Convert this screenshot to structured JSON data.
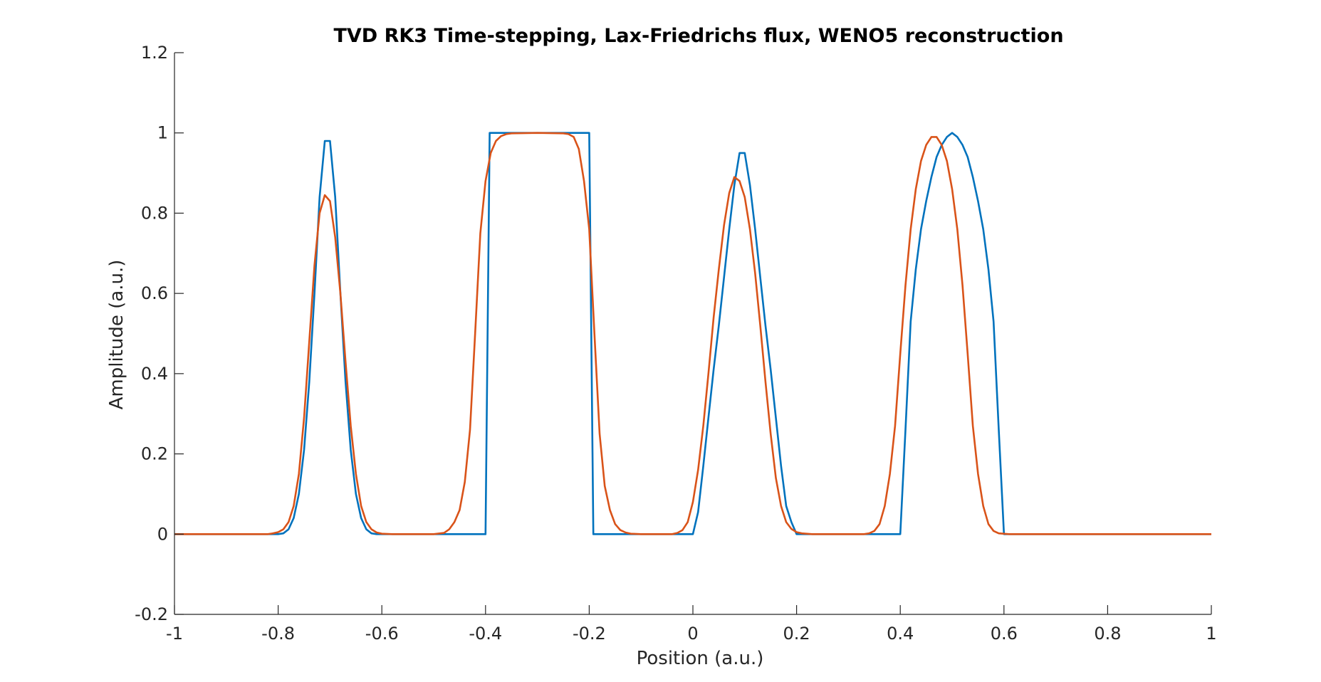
{
  "chart_data": {
    "type": "line",
    "title": "TVD RK3 Time-stepping, Lax-Friedrichs flux, WENO5 reconstruction",
    "xlabel": "Position (a.u.)",
    "ylabel": "Amplitude (a.u.)",
    "xlim": [
      -1,
      1
    ],
    "ylim": [
      -0.2,
      1.2
    ],
    "xticks": [
      -1,
      -0.8,
      -0.6,
      -0.4,
      -0.2,
      0,
      0.2,
      0.4,
      0.6,
      0.8,
      1
    ],
    "xtick_labels": [
      "-1",
      "-0.8",
      "-0.6",
      "-0.4",
      "-0.2",
      "0",
      "0.2",
      "0.4",
      "0.6",
      "0.8",
      "1"
    ],
    "yticks": [
      -0.2,
      0,
      0.2,
      0.4,
      0.6,
      0.8,
      1,
      1.2
    ],
    "ytick_labels": [
      "-0.2",
      "0",
      "0.2",
      "0.4",
      "0.6",
      "0.8",
      "1",
      "1.2"
    ],
    "grid": false,
    "legend": "none",
    "series": [
      {
        "color": "#0072BD",
        "points": [
          [
            -1,
            0
          ],
          [
            -0.8,
            0
          ],
          [
            -0.79,
            0.002
          ],
          [
            -0.78,
            0.012
          ],
          [
            -0.77,
            0.04
          ],
          [
            -0.76,
            0.1
          ],
          [
            -0.75,
            0.21
          ],
          [
            -0.74,
            0.38
          ],
          [
            -0.73,
            0.6
          ],
          [
            -0.72,
            0.84
          ],
          [
            -0.71,
            0.98
          ],
          [
            -0.7,
            0.98
          ],
          [
            -0.69,
            0.84
          ],
          [
            -0.68,
            0.6
          ],
          [
            -0.67,
            0.38
          ],
          [
            -0.66,
            0.21
          ],
          [
            -0.65,
            0.1
          ],
          [
            -0.64,
            0.04
          ],
          [
            -0.63,
            0.012
          ],
          [
            -0.62,
            0.002
          ],
          [
            -0.61,
            0
          ],
          [
            -0.4,
            0
          ],
          [
            -0.392,
            1
          ],
          [
            -0.2,
            1
          ],
          [
            -0.192,
            0
          ],
          [
            0,
            0
          ],
          [
            0.01,
            0.055
          ],
          [
            0.02,
            0.17
          ],
          [
            0.03,
            0.29
          ],
          [
            0.04,
            0.41
          ],
          [
            0.05,
            0.52
          ],
          [
            0.06,
            0.64
          ],
          [
            0.07,
            0.76
          ],
          [
            0.08,
            0.87
          ],
          [
            0.09,
            0.95
          ],
          [
            0.1,
            0.95
          ],
          [
            0.11,
            0.87
          ],
          [
            0.12,
            0.76
          ],
          [
            0.13,
            0.64
          ],
          [
            0.14,
            0.52
          ],
          [
            0.15,
            0.41
          ],
          [
            0.16,
            0.29
          ],
          [
            0.17,
            0.17
          ],
          [
            0.18,
            0.07
          ],
          [
            0.19,
            0.03
          ],
          [
            0.2,
            0
          ],
          [
            0.4,
            0
          ],
          [
            0.41,
            0.26
          ],
          [
            0.42,
            0.53
          ],
          [
            0.43,
            0.66
          ],
          [
            0.44,
            0.76
          ],
          [
            0.45,
            0.83
          ],
          [
            0.46,
            0.89
          ],
          [
            0.47,
            0.94
          ],
          [
            0.48,
            0.97
          ],
          [
            0.49,
            0.99
          ],
          [
            0.5,
            1
          ],
          [
            0.51,
            0.99
          ],
          [
            0.52,
            0.97
          ],
          [
            0.53,
            0.94
          ],
          [
            0.54,
            0.89
          ],
          [
            0.55,
            0.83
          ],
          [
            0.56,
            0.76
          ],
          [
            0.57,
            0.66
          ],
          [
            0.58,
            0.53
          ],
          [
            0.59,
            0.26
          ],
          [
            0.6,
            0
          ],
          [
            1,
            0
          ]
        ]
      },
      {
        "color": "#D95319",
        "points": [
          [
            -1,
            0
          ],
          [
            -0.82,
            0
          ],
          [
            -0.81,
            0.002
          ],
          [
            -0.8,
            0.005
          ],
          [
            -0.79,
            0.012
          ],
          [
            -0.78,
            0.03
          ],
          [
            -0.77,
            0.07
          ],
          [
            -0.76,
            0.15
          ],
          [
            -0.75,
            0.29
          ],
          [
            -0.74,
            0.48
          ],
          [
            -0.73,
            0.67
          ],
          [
            -0.72,
            0.8
          ],
          [
            -0.71,
            0.845
          ],
          [
            -0.7,
            0.83
          ],
          [
            -0.69,
            0.74
          ],
          [
            -0.68,
            0.6
          ],
          [
            -0.67,
            0.43
          ],
          [
            -0.66,
            0.27
          ],
          [
            -0.65,
            0.15
          ],
          [
            -0.64,
            0.07
          ],
          [
            -0.63,
            0.03
          ],
          [
            -0.62,
            0.012
          ],
          [
            -0.61,
            0.004
          ],
          [
            -0.6,
            0.001
          ],
          [
            -0.58,
            0
          ],
          [
            -0.5,
            0
          ],
          [
            -0.48,
            0.003
          ],
          [
            -0.47,
            0.012
          ],
          [
            -0.46,
            0.03
          ],
          [
            -0.45,
            0.06
          ],
          [
            -0.44,
            0.13
          ],
          [
            -0.43,
            0.26
          ],
          [
            -0.42,
            0.5
          ],
          [
            -0.41,
            0.75
          ],
          [
            -0.4,
            0.88
          ],
          [
            -0.39,
            0.95
          ],
          [
            -0.38,
            0.98
          ],
          [
            -0.37,
            0.992
          ],
          [
            -0.36,
            0.997
          ],
          [
            -0.35,
            0.999
          ],
          [
            -0.3,
            1
          ],
          [
            -0.25,
            0.999
          ],
          [
            -0.24,
            0.997
          ],
          [
            -0.23,
            0.99
          ],
          [
            -0.22,
            0.96
          ],
          [
            -0.21,
            0.88
          ],
          [
            -0.2,
            0.76
          ],
          [
            -0.19,
            0.5
          ],
          [
            -0.18,
            0.25
          ],
          [
            -0.17,
            0.12
          ],
          [
            -0.16,
            0.06
          ],
          [
            -0.15,
            0.025
          ],
          [
            -0.14,
            0.01
          ],
          [
            -0.13,
            0.004
          ],
          [
            -0.12,
            0.001
          ],
          [
            -0.1,
            0
          ],
          [
            -0.04,
            0
          ],
          [
            -0.03,
            0.003
          ],
          [
            -0.02,
            0.01
          ],
          [
            -0.01,
            0.03
          ],
          [
            0,
            0.08
          ],
          [
            0.01,
            0.16
          ],
          [
            0.02,
            0.27
          ],
          [
            0.03,
            0.4
          ],
          [
            0.04,
            0.54
          ],
          [
            0.05,
            0.66
          ],
          [
            0.06,
            0.77
          ],
          [
            0.07,
            0.85
          ],
          [
            0.08,
            0.89
          ],
          [
            0.09,
            0.88
          ],
          [
            0.1,
            0.84
          ],
          [
            0.11,
            0.76
          ],
          [
            0.12,
            0.65
          ],
          [
            0.13,
            0.52
          ],
          [
            0.14,
            0.38
          ],
          [
            0.15,
            0.25
          ],
          [
            0.16,
            0.14
          ],
          [
            0.17,
            0.07
          ],
          [
            0.18,
            0.03
          ],
          [
            0.19,
            0.013
          ],
          [
            0.2,
            0.005
          ],
          [
            0.21,
            0.002
          ],
          [
            0.23,
            0
          ],
          [
            0.33,
            0
          ],
          [
            0.34,
            0.002
          ],
          [
            0.35,
            0.008
          ],
          [
            0.36,
            0.025
          ],
          [
            0.37,
            0.07
          ],
          [
            0.38,
            0.15
          ],
          [
            0.39,
            0.27
          ],
          [
            0.4,
            0.45
          ],
          [
            0.41,
            0.62
          ],
          [
            0.42,
            0.76
          ],
          [
            0.43,
            0.86
          ],
          [
            0.44,
            0.93
          ],
          [
            0.45,
            0.97
          ],
          [
            0.46,
            0.99
          ],
          [
            0.47,
            0.99
          ],
          [
            0.48,
            0.97
          ],
          [
            0.49,
            0.93
          ],
          [
            0.5,
            0.86
          ],
          [
            0.51,
            0.76
          ],
          [
            0.52,
            0.62
          ],
          [
            0.53,
            0.45
          ],
          [
            0.54,
            0.27
          ],
          [
            0.55,
            0.15
          ],
          [
            0.56,
            0.07
          ],
          [
            0.57,
            0.025
          ],
          [
            0.58,
            0.008
          ],
          [
            0.59,
            0.002
          ],
          [
            0.61,
            0
          ],
          [
            1,
            0
          ]
        ]
      }
    ]
  }
}
